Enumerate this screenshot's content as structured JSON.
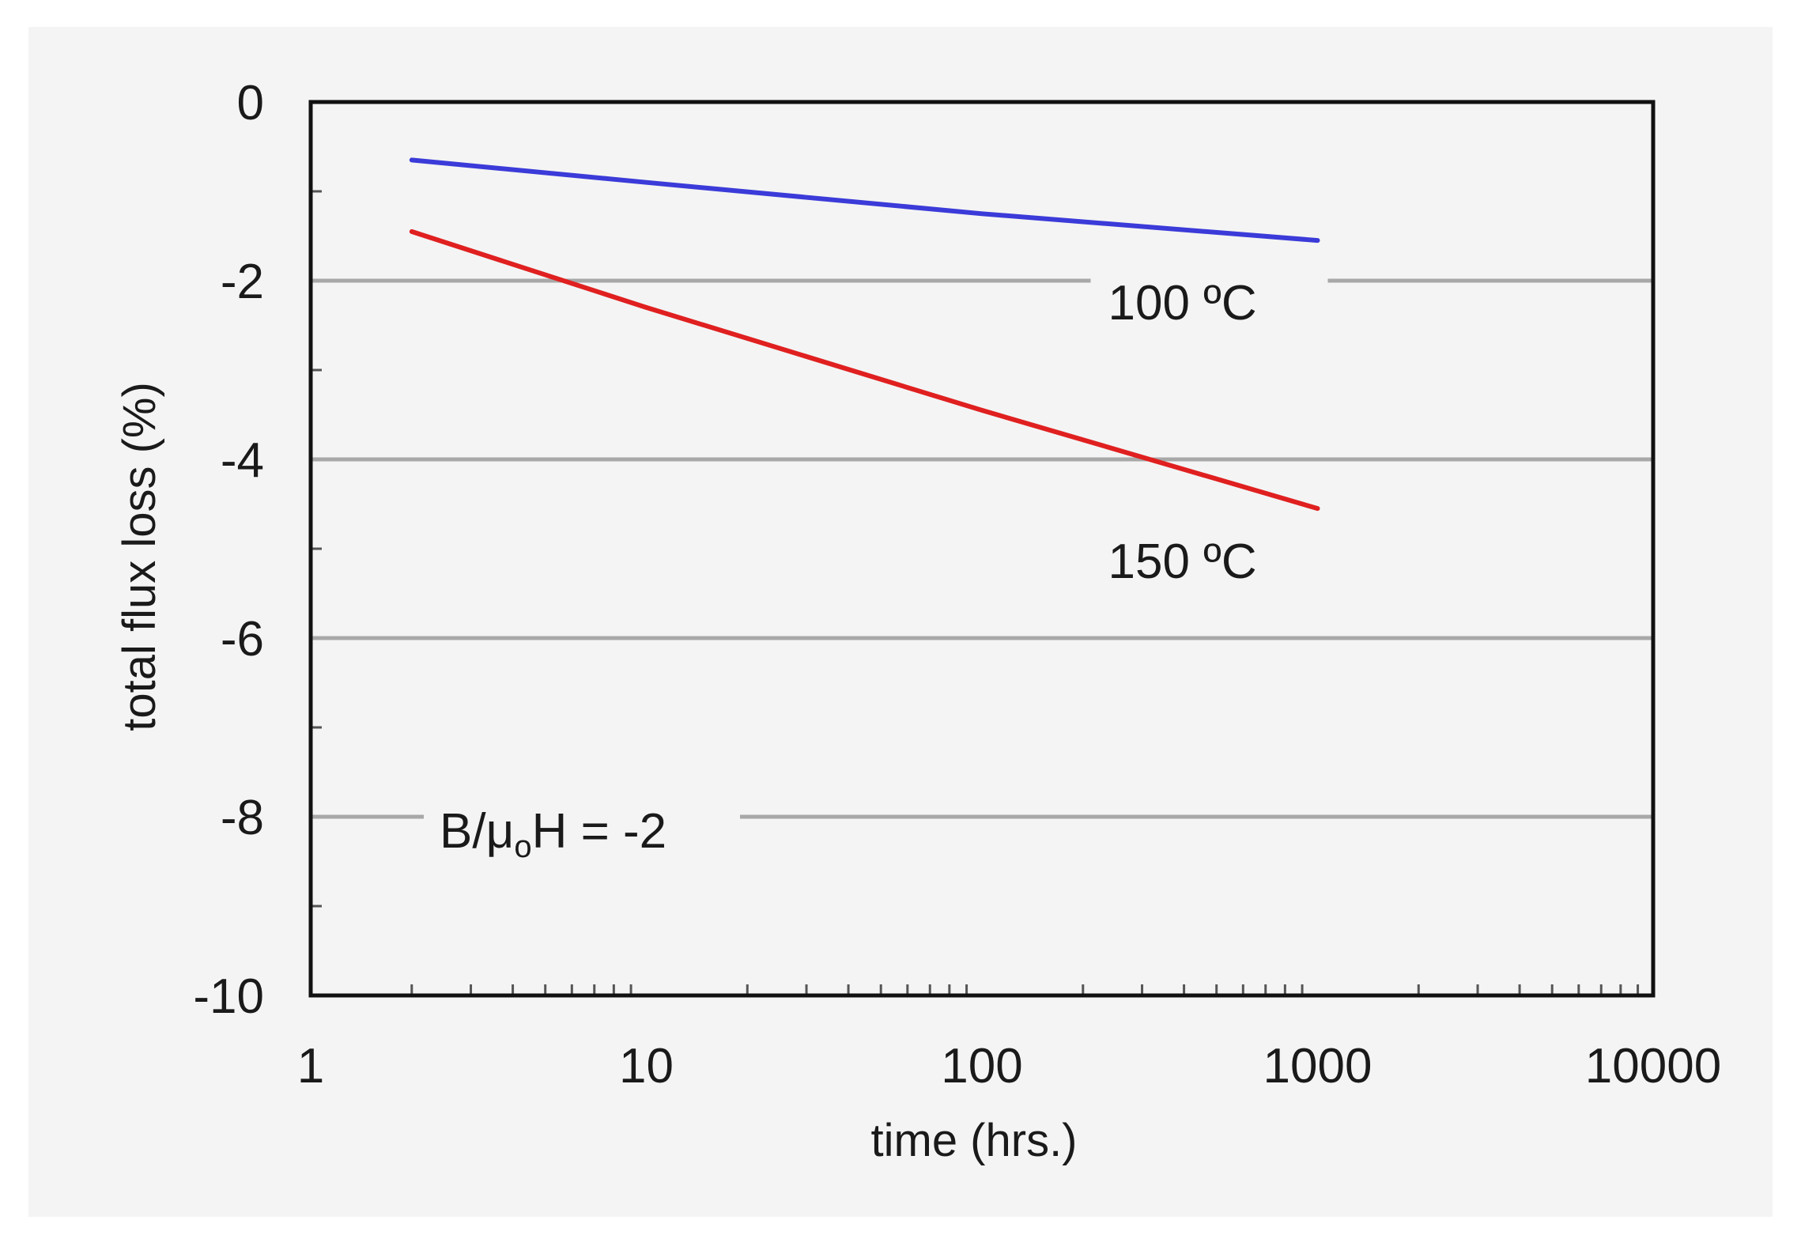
{
  "chart_data": {
    "type": "line",
    "title": "",
    "xlabel": "time (hrs.)",
    "ylabel": "total flux loss (%)",
    "x_scale": "log",
    "xlim": [
      1,
      10000
    ],
    "ylim": [
      -10,
      0
    ],
    "x_ticks": [
      1,
      10,
      100,
      1000,
      10000
    ],
    "x_tick_labels": [
      "1",
      "10",
      "100",
      "1000",
      "10000"
    ],
    "y_ticks": [
      0,
      -2,
      -4,
      -6,
      -8,
      -10
    ],
    "y_tick_labels": [
      "0",
      "-2",
      "-4",
      "-6",
      "-8",
      "-10"
    ],
    "grid": "horizontal at major y ticks",
    "series": [
      {
        "name": "100 ºC",
        "color": "#3b3bd9",
        "points": [
          [
            2,
            -0.65
          ],
          [
            10,
            -0.9
          ],
          [
            100,
            -1.25
          ],
          [
            1000,
            -1.55
          ]
        ]
      },
      {
        "name": "150 ºC",
        "color": "#e02020",
        "points": [
          [
            2,
            -1.45
          ],
          [
            10,
            -2.3
          ],
          [
            100,
            -3.45
          ],
          [
            1000,
            -4.55
          ]
        ]
      }
    ],
    "annotations": {
      "ratio_prefix": "B/μ",
      "ratio_subscript": "o",
      "ratio_suffix": "H = -2"
    }
  }
}
